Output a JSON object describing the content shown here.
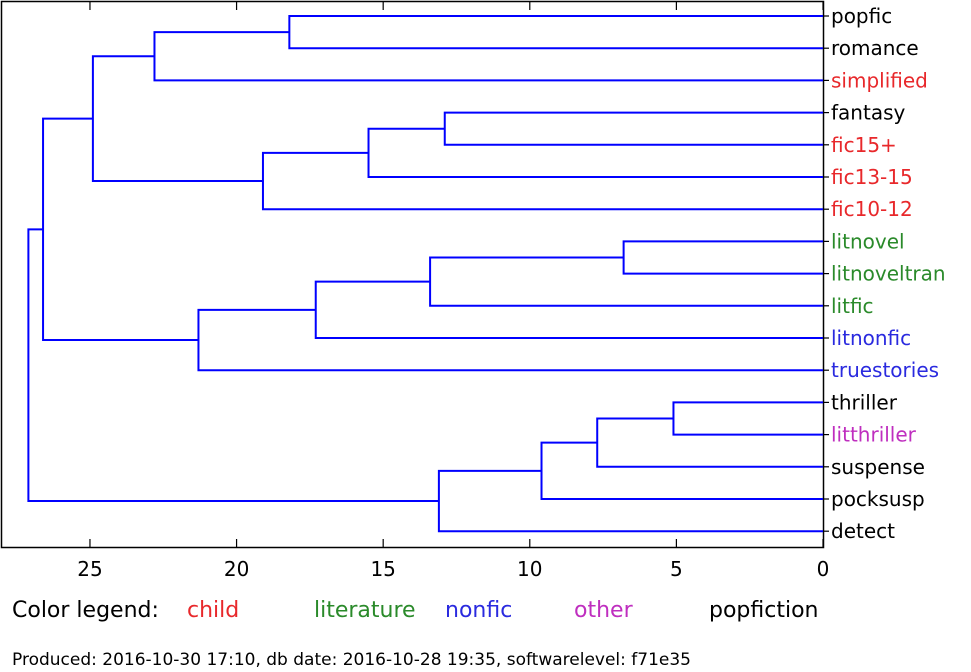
{
  "chart_data": {
    "type": "dendrogram",
    "orientation": "left",
    "x_ticks": [
      25,
      20,
      15,
      10,
      5,
      0
    ],
    "xlim": [
      28,
      0
    ],
    "link_color": "#0000ff",
    "leaves": [
      {
        "label": "popfic",
        "category": "popfiction"
      },
      {
        "label": "romance",
        "category": "popfiction"
      },
      {
        "label": "simplified",
        "category": "child"
      },
      {
        "label": "fantasy",
        "category": "popfiction"
      },
      {
        "label": "fic15+",
        "category": "child"
      },
      {
        "label": "fic13-15",
        "category": "child"
      },
      {
        "label": "fic10-12",
        "category": "child"
      },
      {
        "label": "litnovel",
        "category": "literature"
      },
      {
        "label": "litnoveltran",
        "category": "literature"
      },
      {
        "label": "litfic",
        "category": "literature"
      },
      {
        "label": "litnonfic",
        "category": "nonfic"
      },
      {
        "label": "truestories",
        "category": "nonfic"
      },
      {
        "label": "thriller",
        "category": "popfiction"
      },
      {
        "label": "litthriller",
        "category": "other"
      },
      {
        "label": "suspense",
        "category": "popfiction"
      },
      {
        "label": "pocksusp",
        "category": "popfiction"
      },
      {
        "label": "detect",
        "category": "popfiction"
      }
    ],
    "merges": [
      {
        "id": "m1",
        "left": "leaf:0",
        "right": "leaf:1",
        "height": 18.2
      },
      {
        "id": "m2",
        "left": "m1",
        "right": "leaf:2",
        "height": 22.8
      },
      {
        "id": "m3",
        "left": "leaf:3",
        "right": "leaf:4",
        "height": 12.9
      },
      {
        "id": "m4",
        "left": "m3",
        "right": "leaf:5",
        "height": 15.5
      },
      {
        "id": "m5",
        "left": "m4",
        "right": "leaf:6",
        "height": 19.1
      },
      {
        "id": "m6",
        "left": "m2",
        "right": "m5",
        "height": 24.9
      },
      {
        "id": "m7",
        "left": "leaf:7",
        "right": "leaf:8",
        "height": 6.8
      },
      {
        "id": "m8",
        "left": "m7",
        "right": "leaf:9",
        "height": 13.4
      },
      {
        "id": "m9",
        "left": "m8",
        "right": "leaf:10",
        "height": 17.3
      },
      {
        "id": "m10",
        "left": "m9",
        "right": "leaf:11",
        "height": 21.3
      },
      {
        "id": "m11",
        "left": "m6",
        "right": "m10",
        "height": 26.6
      },
      {
        "id": "m12",
        "left": "leaf:12",
        "right": "leaf:13",
        "height": 5.1
      },
      {
        "id": "m13",
        "left": "m12",
        "right": "leaf:14",
        "height": 7.7
      },
      {
        "id": "m14",
        "left": "m13",
        "right": "leaf:15",
        "height": 9.6
      },
      {
        "id": "m15",
        "left": "m14",
        "right": "leaf:16",
        "height": 13.1
      },
      {
        "id": "m16",
        "left": "m11",
        "right": "m15",
        "height": 27.1
      }
    ]
  },
  "legend": {
    "title": "Color legend:",
    "items": [
      {
        "key": "child",
        "label": "child",
        "color": "#e8282b"
      },
      {
        "key": "literature",
        "label": "literature",
        "color": "#2a8a2a"
      },
      {
        "key": "nonfic",
        "label": "nonfic",
        "color": "#2a2adf"
      },
      {
        "key": "other",
        "label": "other",
        "color": "#bf2ebf"
      },
      {
        "key": "popfiction",
        "label": "popfiction",
        "color": "#000000"
      }
    ]
  },
  "footer": "Produced: 2016-10-30 17:10, db date: 2016-10-28 19:35, softwarelevel: f71e35"
}
